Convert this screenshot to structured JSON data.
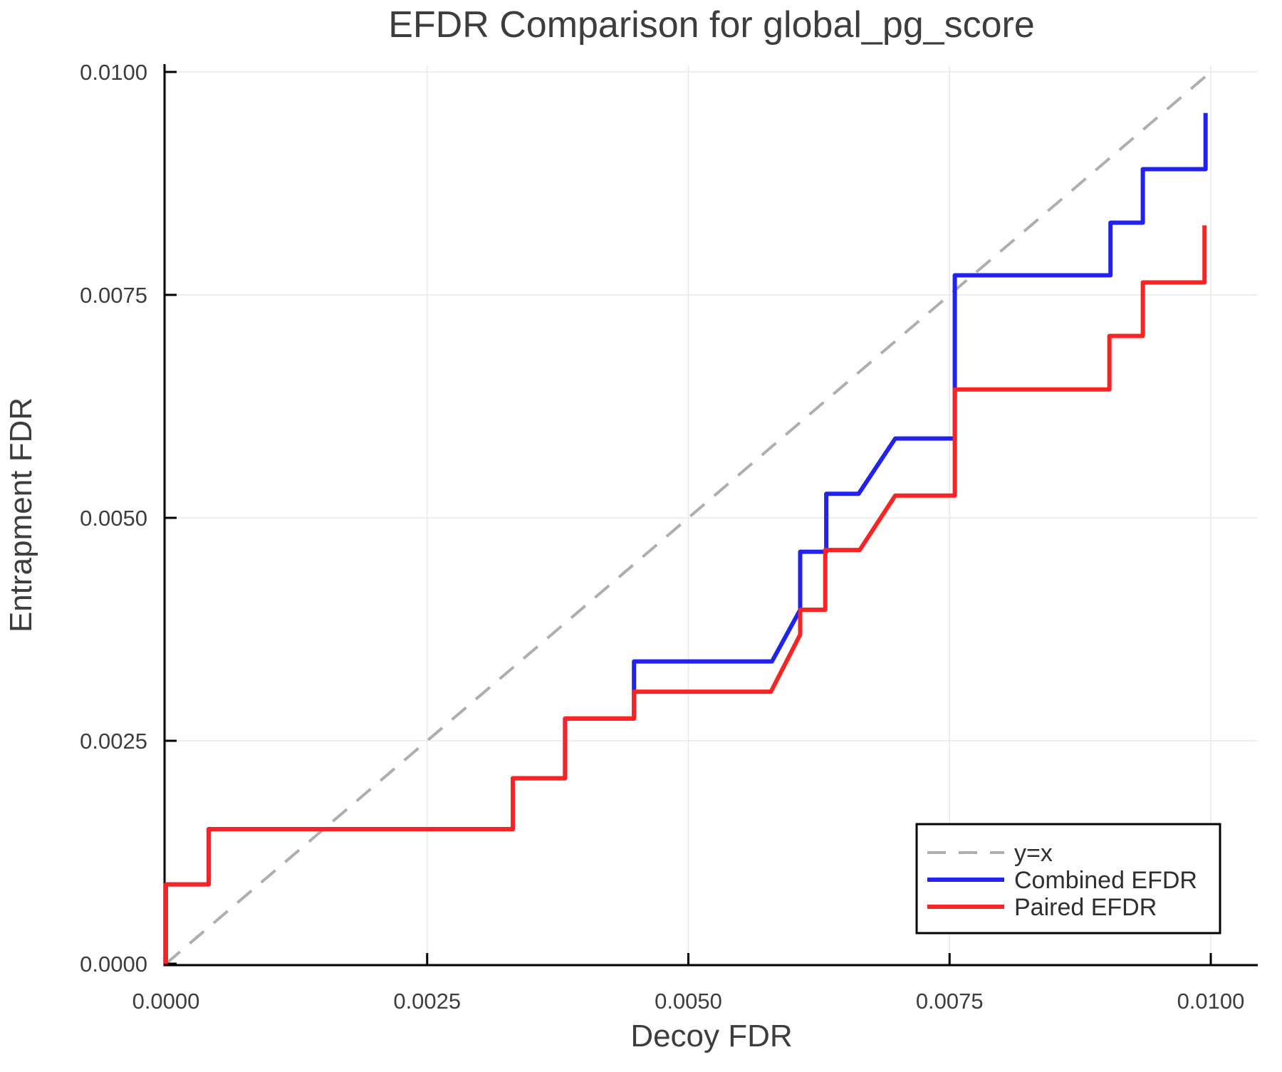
{
  "chart_data": {
    "type": "line",
    "title": "EFDR Comparison for global_pg_score",
    "xlabel": "Decoy FDR",
    "ylabel": "Entrapment FDR",
    "xlim": [
      0,
      0.01045
    ],
    "ylim": [
      0,
      0.010072
    ],
    "grid": true,
    "background": "#ffffff",
    "axis_color": "#000000",
    "gridline_color": "#e9e9e9",
    "text_color": "#3d3d3d",
    "x_ticks": [
      {
        "value": 0.0,
        "label": "0.0000"
      },
      {
        "value": 0.0025,
        "label": "0.0025"
      },
      {
        "value": 0.005,
        "label": "0.0050"
      },
      {
        "value": 0.0075,
        "label": "0.0075"
      },
      {
        "value": 0.01,
        "label": "0.0100"
      }
    ],
    "y_ticks": [
      {
        "value": 0.0,
        "label": "0.0000"
      },
      {
        "value": 0.0025,
        "label": "0.0025"
      },
      {
        "value": 0.005,
        "label": "0.0050"
      },
      {
        "value": 0.0075,
        "label": "0.0075"
      },
      {
        "value": 0.01,
        "label": "0.0100"
      }
    ],
    "reference_line": {
      "label": "y=x",
      "from": [
        0,
        0
      ],
      "to": [
        0.01,
        0.01
      ],
      "color": "#aeaeae",
      "style": "dashed"
    },
    "legend": {
      "position": "lower right",
      "entries": [
        {
          "label": "y=x",
          "color": "#aeaeae",
          "dashed": true
        },
        {
          "label": "Combined EFDR",
          "color": "#2222f0",
          "dashed": false
        },
        {
          "label": "Paired EFDR",
          "color": "#f82323",
          "dashed": false
        }
      ]
    },
    "series": [
      {
        "name": "Combined EFDR",
        "color": "#2222f0",
        "x": [
          0,
          0,
          0.00041,
          0.00041,
          0.00332,
          0.00332,
          0.00382,
          0.00382,
          0.00448,
          0.00448,
          0.0058,
          0.00607,
          0.00607,
          0.00632,
          0.00632,
          0.00663,
          0.00698,
          0.00755,
          0.00755,
          0.00904,
          0.00904,
          0.00935,
          0.00935,
          0.00995,
          0.00995
        ],
        "y": [
          0,
          0.00089,
          0.00089,
          0.00151,
          0.00151,
          0.00208,
          0.00208,
          0.00275,
          0.00275,
          0.00339,
          0.00339,
          0.00397,
          0.00462,
          0.00462,
          0.00527,
          0.00527,
          0.00589,
          0.00589,
          0.00772,
          0.00772,
          0.00831,
          0.00831,
          0.00891,
          0.00891,
          0.00954
        ]
      },
      {
        "name": "Paired EFDR",
        "color": "#f82323",
        "x": [
          0,
          0,
          0.00041,
          0.00041,
          0.00332,
          0.00332,
          0.00382,
          0.00382,
          0.00448,
          0.00448,
          0.00579,
          0.00607,
          0.00607,
          0.00631,
          0.00631,
          0.00664,
          0.00698,
          0.00755,
          0.00755,
          0.00903,
          0.00903,
          0.00935,
          0.00935,
          0.00994,
          0.00994
        ],
        "y": [
          0,
          0.00089,
          0.00089,
          0.00151,
          0.00151,
          0.00208,
          0.00208,
          0.00275,
          0.00275,
          0.00305,
          0.00305,
          0.00369,
          0.00397,
          0.00397,
          0.00464,
          0.00464,
          0.00525,
          0.00525,
          0.00644,
          0.00644,
          0.00704,
          0.00704,
          0.00764,
          0.00764,
          0.00828
        ]
      }
    ]
  }
}
